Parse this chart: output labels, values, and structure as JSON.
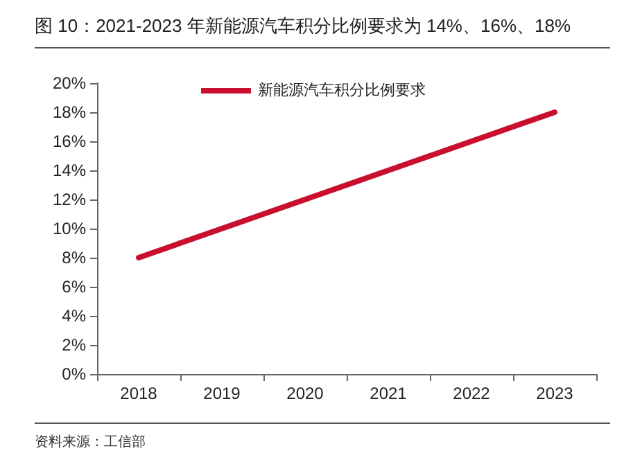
{
  "chart_data": {
    "type": "line",
    "title": "图 10：2021-2023 年新能源汽车积分比例要求为 14%、16%、18%",
    "annotations": [
      "资料来源：工信部"
    ],
    "categories": [
      "2018",
      "2019",
      "2020",
      "2021",
      "2022",
      "2023"
    ],
    "series": [
      {
        "name": "新能源汽车积分比例要求",
        "color": "#c8102e",
        "values": [
          8,
          10,
          12,
          14,
          16,
          18
        ]
      }
    ],
    "ylim": [
      0,
      20
    ],
    "yticks": [
      {
        "value": 0,
        "label": "0%"
      },
      {
        "value": 2,
        "label": "2%"
      },
      {
        "value": 4,
        "label": "4%"
      },
      {
        "value": 6,
        "label": "6%"
      },
      {
        "value": 8,
        "label": "8%"
      },
      {
        "value": 10,
        "label": "10%"
      },
      {
        "value": 12,
        "label": "12%"
      },
      {
        "value": 14,
        "label": "14%"
      },
      {
        "value": 16,
        "label": "16%"
      },
      {
        "value": 18,
        "label": "18%"
      },
      {
        "value": 20,
        "label": "20%"
      }
    ],
    "grid": false,
    "legend": "top",
    "marker": "none",
    "line_style": "solid"
  }
}
